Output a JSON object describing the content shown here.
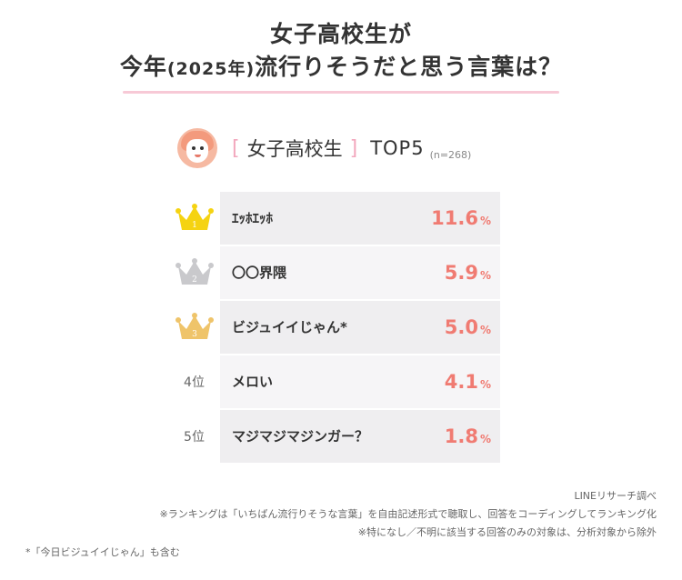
{
  "title": {
    "line1": "女子高校生が",
    "line2_pre": "今年",
    "line2_year": "(2025年)",
    "line2_post": "流行りそうだと思う言葉は？"
  },
  "header": {
    "bracket_open": "[",
    "group": "女子高校生",
    "bracket_close": "]",
    "top": "TOP5",
    "n": "(n=268)"
  },
  "crown_colors": {
    "gold": "#f5d312",
    "silver": "#c9c9cc",
    "bronze": "#efc46a"
  },
  "chart_data": {
    "type": "table",
    "unit": "%",
    "rows": [
      {
        "rank": "1",
        "rank_label": "1",
        "word": "ｴｯﾎｴｯﾎ",
        "value": 11.6,
        "value_text": "11.6"
      },
      {
        "rank": "2",
        "rank_label": "2",
        "word": "〇〇界隈",
        "value": 5.9,
        "value_text": "5.9"
      },
      {
        "rank": "3",
        "rank_label": "3",
        "word": "ビジュイイじゃん*",
        "value": 5.0,
        "value_text": "5.0"
      },
      {
        "rank": "4",
        "rank_label": "4位",
        "word": "メロい",
        "value": 4.1,
        "value_text": "4.1"
      },
      {
        "rank": "5",
        "rank_label": "5位",
        "word": "マジマジマジンガー？",
        "value": 1.8,
        "value_text": "1.8"
      }
    ]
  },
  "notes": {
    "source": "LINEリサーチ調べ",
    "note1": "※ランキングは「いちばん流行りそうな言葉」を自由記述形式で聴取し、回答をコーディングしてランキング化",
    "note2": "※特になし／不明に該当する回答のみの対象は、分析対象から除外",
    "note3": "*「今日ビジュイイじゃん」も含む"
  }
}
